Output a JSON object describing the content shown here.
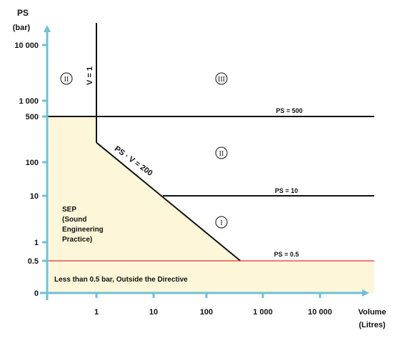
{
  "chart_data": {
    "type": "area",
    "colors": {
      "axis": "#6fc0d8",
      "region_fill": "#fdf6d8",
      "boundary": "#111111",
      "lower_limit": "#e03030",
      "text": "#111111"
    },
    "axes": {
      "y_title_line1": "PS",
      "y_title_line2": "(bar)",
      "x_title_line1": "Volume",
      "x_title_line2": "(Litres)",
      "y_ticks": [
        "0",
        "0.5",
        "1",
        "10",
        "100",
        "500",
        "1 000",
        "10 000"
      ],
      "x_ticks": [
        "1",
        "10",
        "100",
        "1 000",
        "10 000"
      ],
      "x_scale": "log",
      "y_scale": "log"
    },
    "lines": [
      {
        "label": "PS = 500",
        "from": [
          1,
          500
        ],
        "to": [
          10000,
          500
        ]
      },
      {
        "label": "PS = 10",
        "from": [
          10,
          10
        ],
        "to": [
          10000,
          10
        ]
      },
      {
        "label": "PS = 0.5",
        "from": [
          0.1,
          0.5
        ],
        "to": [
          10000,
          0.5
        ]
      },
      {
        "label": "V = 1",
        "from": [
          1,
          500
        ],
        "to": [
          1,
          20000
        ]
      },
      {
        "label": "PS · V = 200",
        "from": [
          1,
          200
        ],
        "to": [
          400,
          0.5
        ]
      }
    ],
    "categories": [
      {
        "symbol": "II",
        "region": "V < 1 litre, PS > 500 bar"
      },
      {
        "symbol": "III",
        "region": "PS > 500 bar, V > 1 litre"
      },
      {
        "symbol": "II",
        "region": "PS · V > 200, PS < 500 bar"
      },
      {
        "symbol": "I",
        "region": "PS · V > 200, PS < 10 bar"
      }
    ],
    "region_labels": {
      "sep_line1": "SEP",
      "sep_line2": "(Sound",
      "sep_line3": "Engineering",
      "sep_line4": "Practice)",
      "below_limit": "Less than 0.5 bar, Outside the Directive"
    }
  }
}
